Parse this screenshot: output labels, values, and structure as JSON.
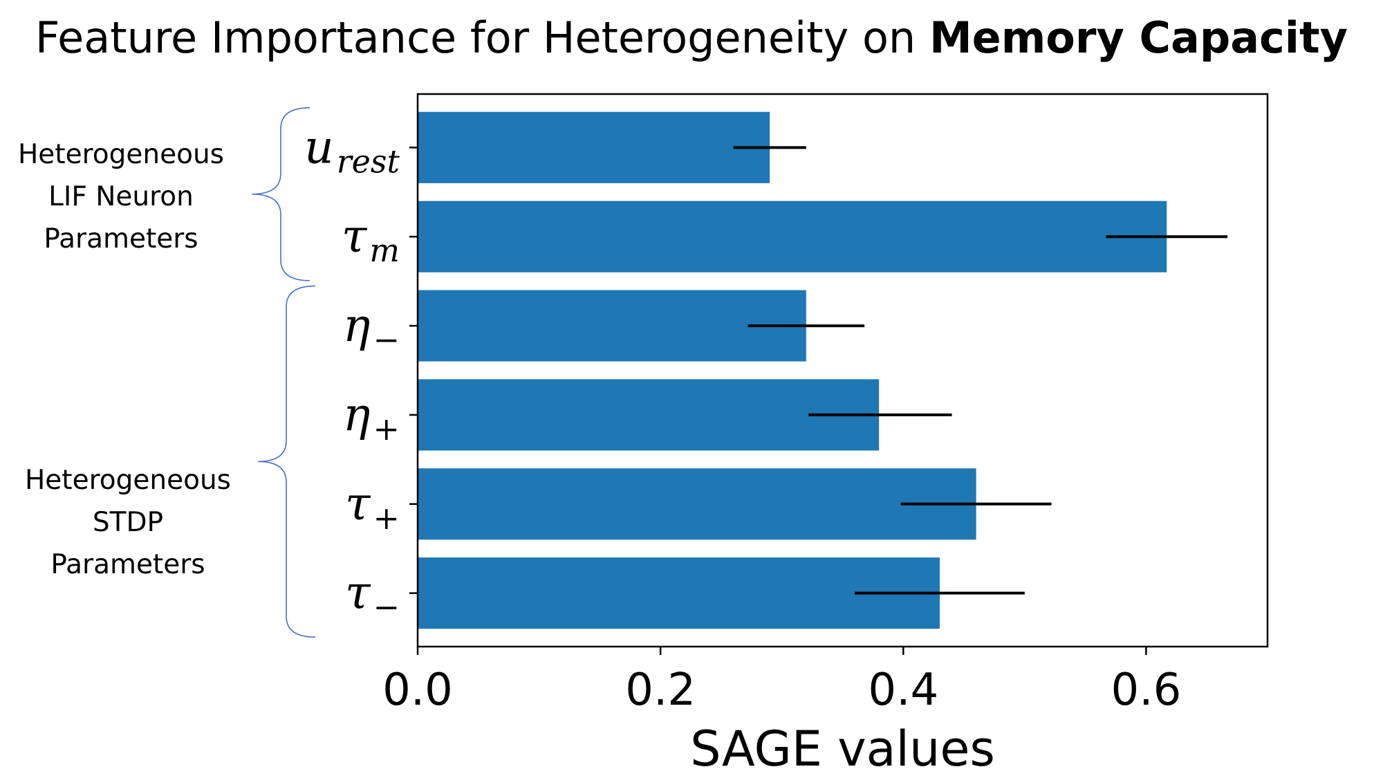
{
  "chart_data": {
    "type": "bar",
    "orientation": "horizontal",
    "title": "Feature Importance for Heterogeneity on",
    "title_emphasis": "Memory Capacity",
    "xlabel": "SAGE values",
    "ylabel": "",
    "xlim": [
      0,
      0.7
    ],
    "x_ticks": [
      "0.0",
      "0.2",
      "0.4",
      "0.6"
    ],
    "categories": [
      {
        "base": "u",
        "sub": "rest"
      },
      {
        "base": "τ",
        "sub": "m"
      },
      {
        "base": "η",
        "sub": "−"
      },
      {
        "base": "η",
        "sub": "+"
      },
      {
        "base": "τ",
        "sub": "+"
      },
      {
        "base": "τ",
        "sub": "−"
      }
    ],
    "values": [
      0.29,
      0.617,
      0.32,
      0.38,
      0.46,
      0.43
    ],
    "error_low": [
      0.26,
      0.567,
      0.272,
      0.322,
      0.398,
      0.36
    ],
    "error_high": [
      0.32,
      0.667,
      0.368,
      0.44,
      0.522,
      0.5
    ],
    "bar_color": "#1f77b4",
    "grid": false,
    "groups": [
      {
        "lines": [
          "Heterogeneous",
          "LIF Neuron",
          "Parameters"
        ],
        "members": [
          0,
          1
        ]
      },
      {
        "lines": [
          "Heterogeneous",
          "STDP",
          "Parameters"
        ],
        "members": [
          2,
          3,
          4,
          5
        ]
      }
    ],
    "brace_color": "#4472c4"
  }
}
